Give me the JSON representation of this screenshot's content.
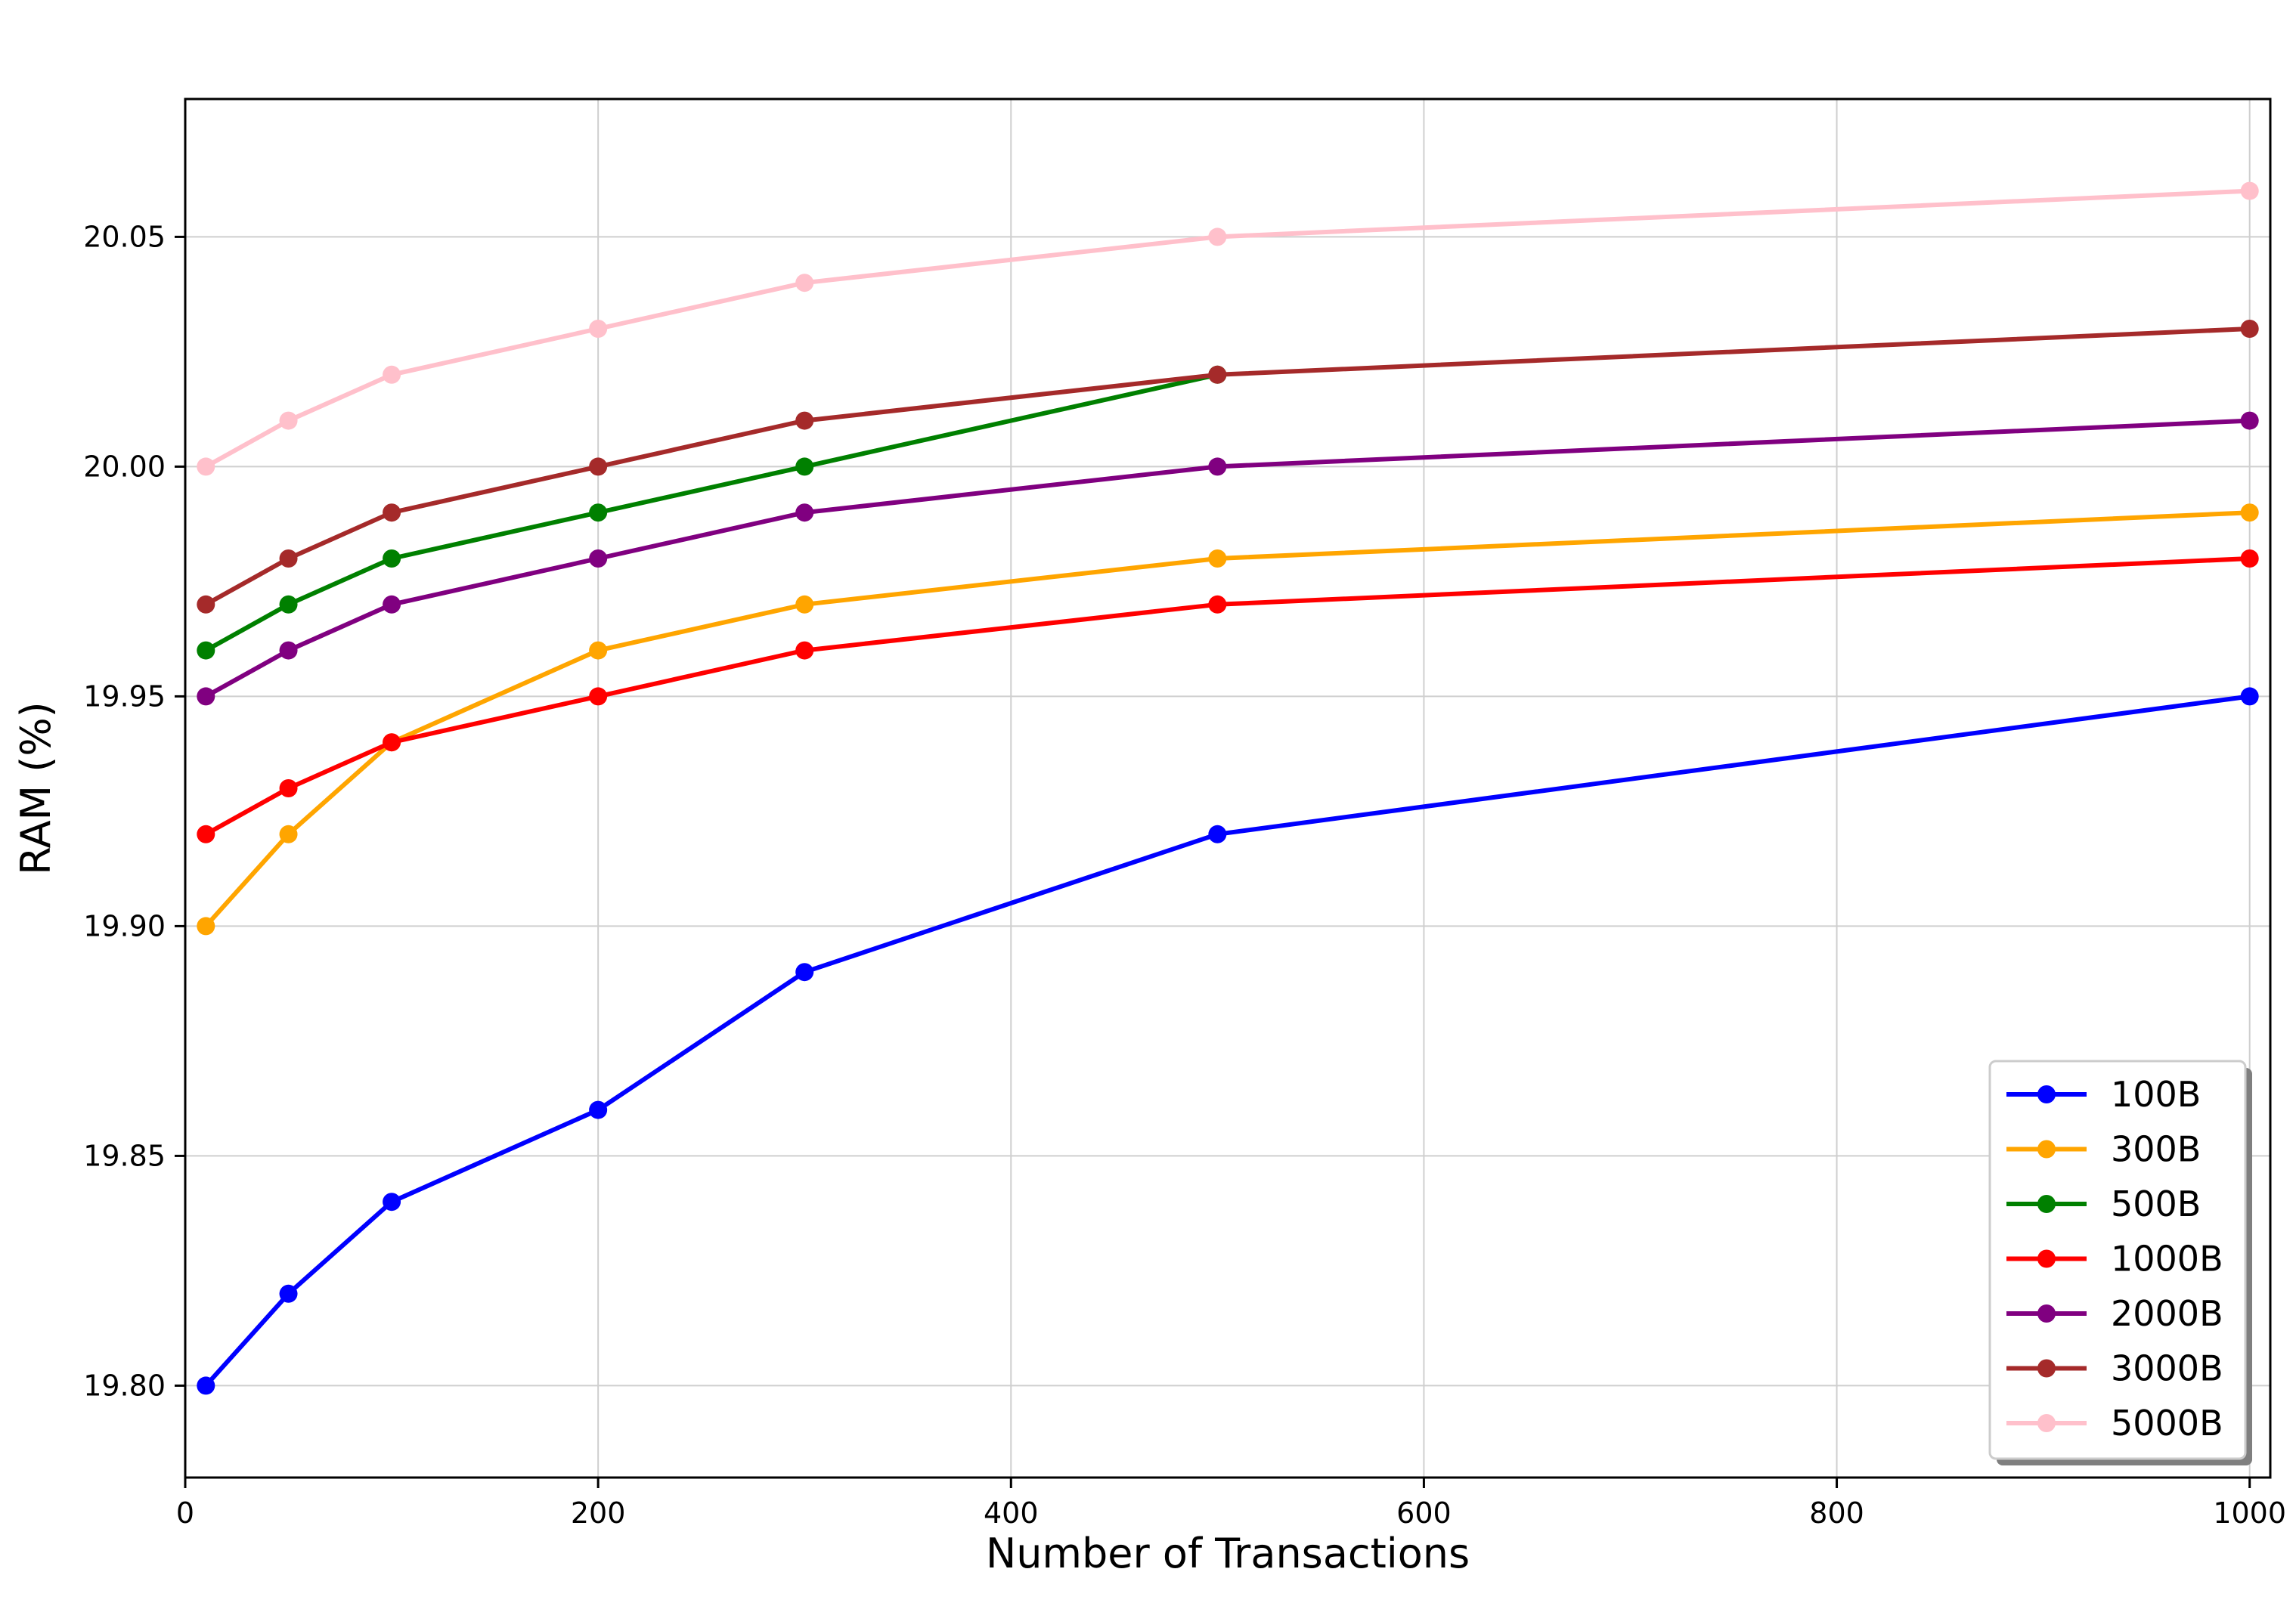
{
  "chart_data": {
    "type": "line",
    "title": "",
    "xlabel": "Number of Transactions",
    "ylabel": "RAM (%)",
    "xlim": [
      0,
      1010
    ],
    "ylim": [
      19.78,
      20.08
    ],
    "x": [
      10,
      50,
      100,
      200,
      300,
      500,
      1000
    ],
    "x_ticks": [
      0,
      200,
      400,
      600,
      800,
      1000
    ],
    "x_tick_labels": [
      "0",
      "200",
      "400",
      "600",
      "800",
      "1000"
    ],
    "y_ticks": [
      19.8,
      19.85,
      19.9,
      19.95,
      20.0,
      20.05
    ],
    "y_tick_labels": [
      "19.80",
      "19.85",
      "19.90",
      "19.95",
      "20.00",
      "20.05"
    ],
    "grid": true,
    "legend_position": "lower-right",
    "series": [
      {
        "name": "100B",
        "color": "#0000ff",
        "values": [
          19.8,
          19.82,
          19.84,
          19.86,
          19.89,
          19.92,
          19.95
        ]
      },
      {
        "name": "300B",
        "color": "#ffa500",
        "values": [
          19.9,
          19.92,
          19.94,
          19.96,
          19.97,
          19.98,
          19.99
        ]
      },
      {
        "name": "500B",
        "color": "#008000",
        "values": [
          19.96,
          19.97,
          19.98,
          19.99,
          20.0,
          20.02,
          null
        ]
      },
      {
        "name": "1000B",
        "color": "#ff0000",
        "values": [
          19.92,
          19.93,
          19.94,
          19.95,
          19.96,
          19.97,
          19.98
        ]
      },
      {
        "name": "2000B",
        "color": "#800080",
        "values": [
          19.95,
          19.96,
          19.97,
          19.98,
          19.99,
          20.0,
          20.01
        ]
      },
      {
        "name": "3000B",
        "color": "#a52a2a",
        "values": [
          19.97,
          19.98,
          19.99,
          20.0,
          20.01,
          20.02,
          20.03
        ]
      },
      {
        "name": "5000B",
        "color": "#ffc0cb",
        "values": [
          20.0,
          20.01,
          20.02,
          20.03,
          20.04,
          20.05,
          20.06
        ]
      }
    ]
  }
}
